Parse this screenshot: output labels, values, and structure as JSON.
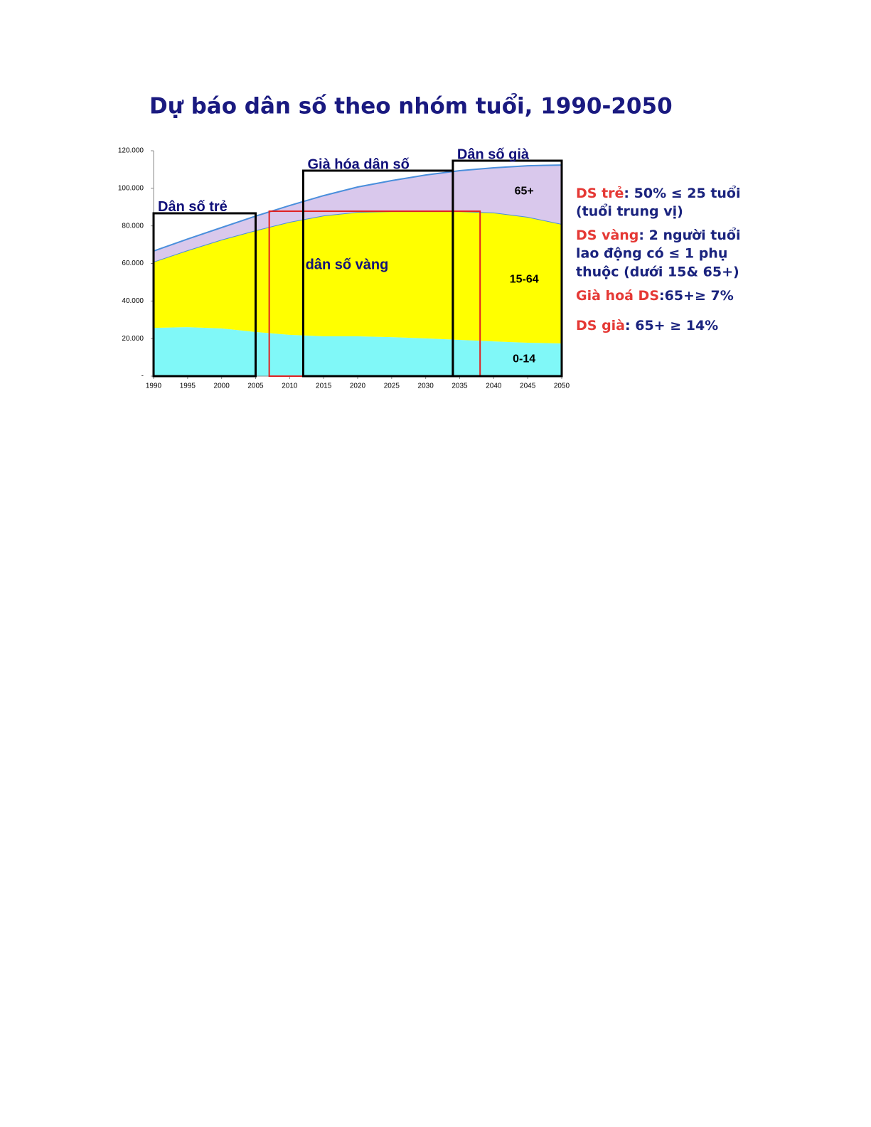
{
  "chart_data": {
    "type": "stacked_area",
    "title": "Dự báo dân số theo nhóm tuổi, 1990-2050",
    "x": [
      1990,
      1995,
      2000,
      2005,
      2010,
      2015,
      2020,
      2025,
      2030,
      2035,
      2040,
      2045,
      2050
    ],
    "xlim": [
      1990,
      2050
    ],
    "xticks": [
      1990,
      1995,
      2000,
      2005,
      2010,
      2015,
      2020,
      2025,
      2030,
      2035,
      2040,
      2045,
      2050
    ],
    "ylim": [
      0,
      120000
    ],
    "yticks": [
      {
        "value": 0,
        "label": "-"
      },
      {
        "value": 20000,
        "label": "20.000"
      },
      {
        "value": 40000,
        "label": "40.000"
      },
      {
        "value": 60000,
        "label": "60.000"
      },
      {
        "value": 80000,
        "label": "80.000"
      },
      {
        "value": 100000,
        "label": "100.000"
      },
      {
        "value": 120000,
        "label": "120.000"
      }
    ],
    "series": [
      {
        "name": "0-14",
        "color": "#80f8f8",
        "values": [
          25700,
          26100,
          25400,
          23500,
          22000,
          21200,
          21200,
          20800,
          20100,
          19300,
          18500,
          17800,
          17400
        ]
      },
      {
        "name": "15-64",
        "color": "#ffff00",
        "line": "#4a8fdc",
        "values": [
          35200,
          40900,
          47300,
          54100,
          60100,
          64300,
          66200,
          67000,
          67700,
          68500,
          68600,
          67000,
          63600
        ]
      },
      {
        "name": "65+",
        "color": "#d9c8ec",
        "line": "#4a8fdc",
        "values": [
          5700,
          6000,
          6400,
          7600,
          8700,
          10600,
          13300,
          16300,
          19300,
          21600,
          23800,
          27200,
          31400
        ]
      }
    ],
    "annotations": [
      {
        "label": "Dân số trẻ",
        "range": [
          1990,
          2005
        ],
        "top": 86700,
        "color": "#000000",
        "placement": "above"
      },
      {
        "label": "dân số vàng",
        "range": [
          2007,
          2038
        ],
        "top": 87800,
        "color": "#e02020",
        "placement": "inside"
      },
      {
        "label": "Già hóa dân số",
        "range": [
          2012,
          2034
        ],
        "top": 109400,
        "color": "#000000",
        "placement": "above"
      },
      {
        "label": "Dân số già",
        "range": [
          2034,
          2050
        ],
        "top": 114700,
        "color": "#000000",
        "placement": "above"
      }
    ],
    "notes": [
      {
        "term": "DS trẻ",
        "lines": [
          ": 50% ≤ 25 tuổi",
          "(tuổi trung vị)"
        ]
      },
      {
        "term": "DS vàng",
        "lines": [
          ": 2 người tuổi",
          "lao động có ≤ 1 phụ",
          "thuộc (dưới 15& 65+)"
        ]
      },
      {
        "term": "Già hoá DS",
        "lines": [
          ":65+≥ 7%"
        ]
      },
      {
        "term": "DS già",
        "lines": [
          ": 65+ ≥ 14%"
        ]
      }
    ]
  }
}
